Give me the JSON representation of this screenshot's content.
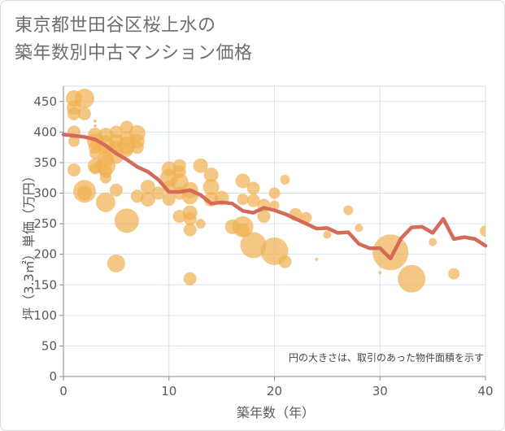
{
  "title": "東京都世田谷区桜上水の\n築年数別中古マンション価格",
  "chart_data": {
    "type": "scatter",
    "xlabel": "築年数（年）",
    "ylabel": "坪（3.3㎡）単価（万円）",
    "xlim": [
      0,
      40
    ],
    "ylim": [
      0,
      475
    ],
    "xticks": [
      0,
      10,
      20,
      30,
      40
    ],
    "yticks": [
      0,
      50,
      100,
      150,
      200,
      250,
      300,
      350,
      400,
      450
    ],
    "grid": true,
    "note": "円の大きさは、取引のあった物件面積を示す",
    "colors": {
      "bubble": "#f0b050",
      "line": "#d46a5a"
    },
    "bubbles": [
      {
        "x": 1,
        "y": 455,
        "r": 10
      },
      {
        "x": 1,
        "y": 440,
        "r": 9
      },
      {
        "x": 1,
        "y": 430,
        "r": 8
      },
      {
        "x": 2,
        "y": 455,
        "r": 12
      },
      {
        "x": 2,
        "y": 430,
        "r": 8
      },
      {
        "x": 1,
        "y": 400,
        "r": 8
      },
      {
        "x": 1,
        "y": 385,
        "r": 7
      },
      {
        "x": 1,
        "y": 338,
        "r": 8
      },
      {
        "x": 2,
        "y": 303,
        "r": 14
      },
      {
        "x": 2,
        "y": 300,
        "r": 9
      },
      {
        "x": 3,
        "y": 418,
        "r": 2
      },
      {
        "x": 3,
        "y": 410,
        "r": 2
      },
      {
        "x": 3,
        "y": 395,
        "r": 9
      },
      {
        "x": 3,
        "y": 385,
        "r": 10
      },
      {
        "x": 3,
        "y": 375,
        "r": 8
      },
      {
        "x": 3,
        "y": 365,
        "r": 7
      },
      {
        "x": 3,
        "y": 345,
        "r": 9
      },
      {
        "x": 3,
        "y": 340,
        "r": 7
      },
      {
        "x": 4,
        "y": 395,
        "r": 9
      },
      {
        "x": 4,
        "y": 380,
        "r": 11
      },
      {
        "x": 4,
        "y": 370,
        "r": 8
      },
      {
        "x": 4,
        "y": 355,
        "r": 10
      },
      {
        "x": 4,
        "y": 345,
        "r": 12
      },
      {
        "x": 4,
        "y": 335,
        "r": 8
      },
      {
        "x": 4,
        "y": 325,
        "r": 7
      },
      {
        "x": 4,
        "y": 285,
        "r": 12
      },
      {
        "x": 5,
        "y": 400,
        "r": 8
      },
      {
        "x": 5,
        "y": 385,
        "r": 9
      },
      {
        "x": 5,
        "y": 375,
        "r": 8
      },
      {
        "x": 5,
        "y": 360,
        "r": 9
      },
      {
        "x": 5,
        "y": 305,
        "r": 8
      },
      {
        "x": 5,
        "y": 185,
        "r": 11
      },
      {
        "x": 6,
        "y": 408,
        "r": 8
      },
      {
        "x": 6,
        "y": 390,
        "r": 9
      },
      {
        "x": 6,
        "y": 378,
        "r": 11
      },
      {
        "x": 6,
        "y": 370,
        "r": 8
      },
      {
        "x": 6,
        "y": 255,
        "r": 15
      },
      {
        "x": 7,
        "y": 398,
        "r": 10
      },
      {
        "x": 7,
        "y": 385,
        "r": 9
      },
      {
        "x": 7,
        "y": 375,
        "r": 8
      },
      {
        "x": 7,
        "y": 295,
        "r": 8
      },
      {
        "x": 8,
        "y": 310,
        "r": 9
      },
      {
        "x": 8,
        "y": 290,
        "r": 9
      },
      {
        "x": 9,
        "y": 300,
        "r": 8
      },
      {
        "x": 10,
        "y": 340,
        "r": 9
      },
      {
        "x": 10,
        "y": 325,
        "r": 11
      },
      {
        "x": 10,
        "y": 310,
        "r": 8
      },
      {
        "x": 10,
        "y": 290,
        "r": 8
      },
      {
        "x": 11,
        "y": 345,
        "r": 8
      },
      {
        "x": 11,
        "y": 335,
        "r": 8
      },
      {
        "x": 11,
        "y": 318,
        "r": 11
      },
      {
        "x": 11,
        "y": 300,
        "r": 8
      },
      {
        "x": 11,
        "y": 262,
        "r": 8
      },
      {
        "x": 12,
        "y": 305,
        "r": 10
      },
      {
        "x": 12,
        "y": 295,
        "r": 10
      },
      {
        "x": 12,
        "y": 268,
        "r": 9
      },
      {
        "x": 12,
        "y": 258,
        "r": 8
      },
      {
        "x": 12,
        "y": 240,
        "r": 8
      },
      {
        "x": 12,
        "y": 160,
        "r": 8
      },
      {
        "x": 13,
        "y": 345,
        "r": 9
      },
      {
        "x": 13,
        "y": 250,
        "r": 6
      },
      {
        "x": 14,
        "y": 330,
        "r": 9
      },
      {
        "x": 14,
        "y": 310,
        "r": 10
      },
      {
        "x": 14,
        "y": 290,
        "r": 9
      },
      {
        "x": 15,
        "y": 292,
        "r": 9
      },
      {
        "x": 16,
        "y": 245,
        "r": 9
      },
      {
        "x": 17,
        "y": 320,
        "r": 9
      },
      {
        "x": 17,
        "y": 290,
        "r": 7
      },
      {
        "x": 17,
        "y": 245,
        "r": 13
      },
      {
        "x": 17,
        "y": 240,
        "r": 8
      },
      {
        "x": 18,
        "y": 308,
        "r": 8
      },
      {
        "x": 18,
        "y": 288,
        "r": 8
      },
      {
        "x": 18,
        "y": 215,
        "r": 16
      },
      {
        "x": 19,
        "y": 280,
        "r": 8
      },
      {
        "x": 19,
        "y": 262,
        "r": 8
      },
      {
        "x": 20,
        "y": 300,
        "r": 7
      },
      {
        "x": 20,
        "y": 280,
        "r": 6
      },
      {
        "x": 20,
        "y": 205,
        "r": 17
      },
      {
        "x": 21,
        "y": 322,
        "r": 6
      },
      {
        "x": 21,
        "y": 188,
        "r": 8
      },
      {
        "x": 22,
        "y": 265,
        "r": 8
      },
      {
        "x": 23,
        "y": 260,
        "r": 7
      },
      {
        "x": 24,
        "y": 192,
        "r": 2
      },
      {
        "x": 25,
        "y": 232,
        "r": 5
      },
      {
        "x": 27,
        "y": 272,
        "r": 6
      },
      {
        "x": 28,
        "y": 243,
        "r": 5
      },
      {
        "x": 30,
        "y": 170,
        "r": 2
      },
      {
        "x": 31,
        "y": 203,
        "r": 22
      },
      {
        "x": 33,
        "y": 160,
        "r": 17
      },
      {
        "x": 35,
        "y": 220,
        "r": 5
      },
      {
        "x": 37,
        "y": 168,
        "r": 7
      },
      {
        "x": 40,
        "y": 238,
        "r": 7
      }
    ],
    "trend": {
      "x": [
        0,
        1,
        2,
        3,
        4,
        5,
        6,
        7,
        8,
        9,
        10,
        11,
        12,
        13,
        14,
        15,
        16,
        17,
        18,
        19,
        20,
        21,
        22,
        23,
        24,
        25,
        26,
        27,
        28,
        29,
        30,
        31,
        32,
        33,
        34,
        35,
        36,
        37,
        38,
        39,
        40
      ],
      "y": [
        396,
        394,
        392,
        388,
        378,
        365,
        355,
        343,
        335,
        322,
        302,
        302,
        305,
        297,
        283,
        285,
        283,
        271,
        268,
        276,
        272,
        266,
        258,
        250,
        242,
        243,
        235,
        236,
        217,
        210,
        210,
        193,
        226,
        244,
        245,
        235,
        258,
        225,
        228,
        225,
        214
      ]
    }
  }
}
